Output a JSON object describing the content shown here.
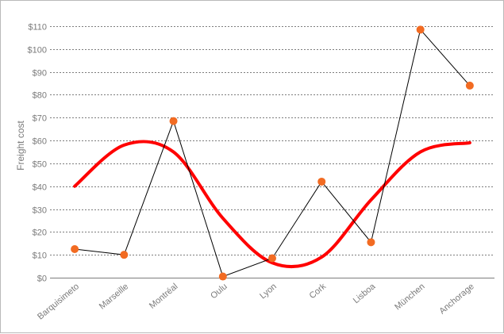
{
  "chart_data": {
    "type": "line",
    "title": "",
    "xlabel": "",
    "ylabel": "Freight cost",
    "categories": [
      "Barquisimeto",
      "Marseille",
      "Montréal",
      "Oulu",
      "Lyon",
      "Cork",
      "Lisboa",
      "München",
      "Anchorage"
    ],
    "ylim": [
      0,
      110
    ],
    "yticks": [
      0,
      10,
      20,
      30,
      40,
      50,
      60,
      70,
      80,
      90,
      100,
      110
    ],
    "ytick_labels": [
      "$0",
      "$10",
      "$20",
      "$30",
      "$40",
      "$50",
      "$60",
      "$70",
      "$80",
      "$90",
      "$100",
      "$110"
    ],
    "grid": true,
    "legend": "none",
    "series": [
      {
        "kind": "line-with-markers",
        "values": [
          12.5,
          10,
          68.5,
          0.5,
          8.5,
          42,
          15.5,
          108.5,
          84
        ],
        "line_color": "#000000",
        "marker_color": "#f26b22"
      },
      {
        "kind": "smooth-trend",
        "values": [
          40,
          58,
          55,
          26,
          6.5,
          9,
          34,
          55,
          59
        ],
        "line_color": "#ff0000"
      }
    ]
  }
}
